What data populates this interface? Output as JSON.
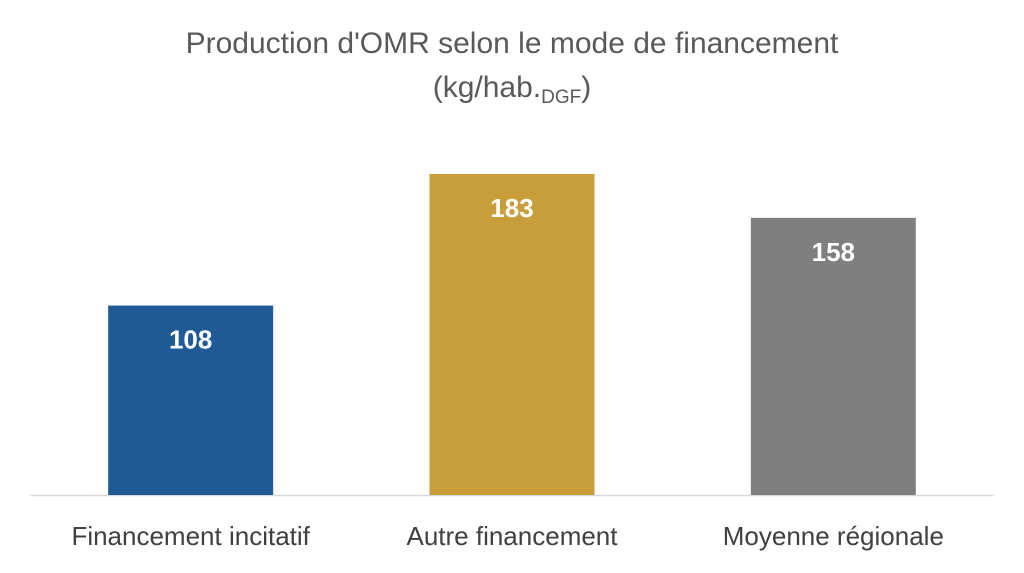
{
  "chart_data": {
    "type": "bar",
    "title": "Production d'OMR selon le mode de financement",
    "title_line2_main": "(kg/hab.",
    "title_line2_sub": "DGF",
    "title_line2_end": ")",
    "categories": [
      "Financement incitatif",
      "Autre financement",
      "Moyenne régionale"
    ],
    "values": [
      108,
      183,
      158
    ],
    "colors": [
      "#1f5a96",
      "#c79e3a",
      "#7f7f7f"
    ],
    "data_labels": true,
    "xlabel": "",
    "ylabel": "",
    "ylim": [
      0,
      183
    ],
    "grid": false,
    "legend": "none"
  }
}
